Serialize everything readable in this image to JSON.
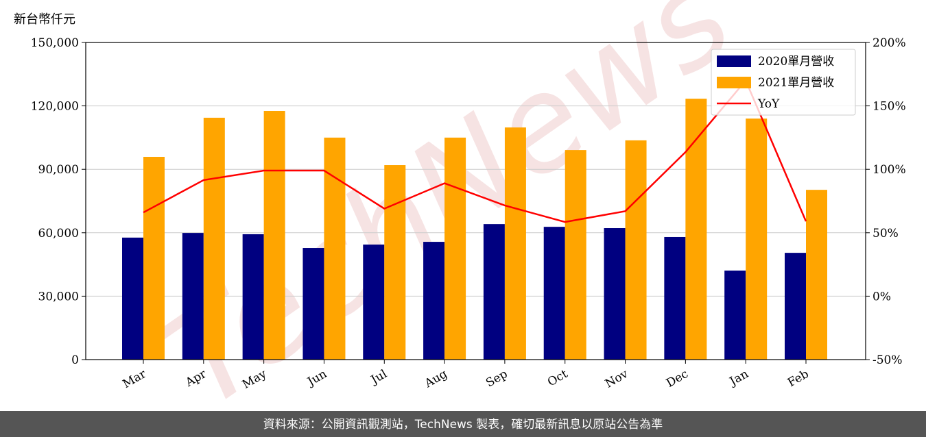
{
  "chart_data": {
    "type": "bar",
    "y_label": "新台幣仟元",
    "watermark": "TechNews",
    "footer": "資料來源：公開資訊觀測站，TechNews 製表，確切最新訊息以原站公告為準",
    "categories": [
      "Mar",
      "Apr",
      "May",
      "Jun",
      "Jul",
      "Aug",
      "Sep",
      "Oct",
      "Nov",
      "Dec",
      "Jan",
      "Feb"
    ],
    "series": [
      {
        "name": "2020單月營收",
        "color": "#000080",
        "type": "bar",
        "values": [
          57700,
          59900,
          59300,
          52800,
          54400,
          55700,
          64100,
          62800,
          62200,
          58000,
          42100,
          50500
        ]
      },
      {
        "name": "2021單月營收",
        "color": "#ffa500",
        "type": "bar",
        "values": [
          95900,
          114400,
          117600,
          105000,
          92000,
          105000,
          109800,
          99100,
          103700,
          123400,
          114000,
          80300
        ]
      },
      {
        "name": "YoY",
        "color": "#ff0000",
        "type": "line",
        "axis": "y2",
        "values": [
          66,
          91.5,
          99,
          99,
          69,
          89,
          71.5,
          58.5,
          67,
          113.6,
          170,
          59
        ]
      }
    ],
    "ylim": [
      0,
      150000
    ],
    "yticks": [
      0,
      {
        "value": 30000,
        "label": "30,000"
      },
      {
        "value": 60000,
        "label": "60,000"
      },
      {
        "value": 90000,
        "label": "90,000"
      },
      {
        "value": 120000,
        "label": "120,000"
      },
      {
        "value": 150000,
        "label": "150,000"
      }
    ],
    "y2lim": [
      -50,
      200
    ],
    "y2ticks": [
      {
        "value": -50,
        "label": "-50%"
      },
      {
        "value": 0,
        "label": "0%"
      },
      {
        "value": 50,
        "label": "50%"
      },
      {
        "value": 100,
        "label": "100%"
      },
      {
        "value": 150,
        "label": "150%"
      },
      {
        "value": 200,
        "label": "200%"
      }
    ],
    "grid": true,
    "legend": "upper right"
  }
}
